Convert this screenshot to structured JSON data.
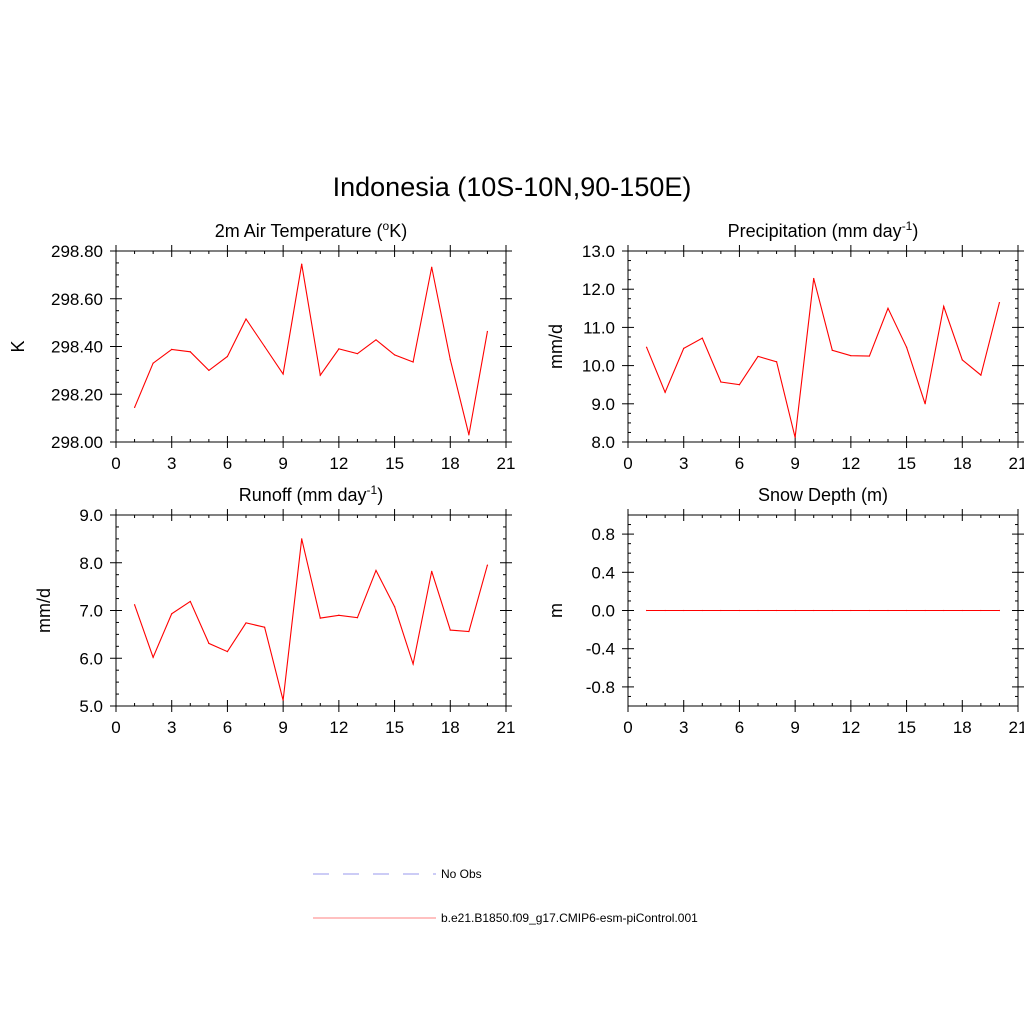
{
  "title": "Indonesia (10S-10N,90-150E)",
  "legend": [
    {
      "label": "No Obs",
      "color": "#9a9aee",
      "dash": "dashed"
    },
    {
      "label": "b.e21.B1850.f09_g17.CMIP6-esm-piControl.001",
      "color": "#ff8080",
      "dash": "solid"
    }
  ],
  "colors": {
    "series": "#ff0000",
    "axis": "#000000"
  },
  "chart_data": [
    {
      "type": "line",
      "title": "2m Air Temperature (",
      "title_sup": "o",
      "title_suffix": "K)",
      "xlabel": "",
      "ylabel": "K",
      "xlim": [
        0,
        21
      ],
      "ylim": [
        298.0,
        298.8
      ],
      "xticks": [
        0,
        3,
        6,
        9,
        12,
        15,
        18,
        21
      ],
      "yticks": [
        298.0,
        298.2,
        298.4,
        298.6,
        298.8
      ],
      "ytick_labels": [
        "298.00",
        "298.20",
        "298.40",
        "298.60",
        "298.80"
      ],
      "x": [
        1,
        2,
        3,
        4,
        5,
        6,
        7,
        8,
        9,
        10,
        11,
        12,
        13,
        14,
        15,
        16,
        17,
        18,
        19,
        20
      ],
      "values": [
        298.145,
        298.33,
        298.388,
        298.378,
        298.3,
        298.358,
        298.515,
        298.4,
        298.285,
        298.745,
        298.28,
        298.39,
        298.37,
        298.428,
        298.365,
        298.335,
        298.732,
        298.345,
        298.03,
        298.463
      ]
    },
    {
      "type": "line",
      "title": "Precipitation (mm day",
      "title_sup": "-1",
      "title_suffix": ")",
      "xlabel": "",
      "ylabel": "mm/d",
      "xlim": [
        0,
        21
      ],
      "ylim": [
        8.0,
        13.0
      ],
      "xticks": [
        0,
        3,
        6,
        9,
        12,
        15,
        18,
        21
      ],
      "yticks": [
        8,
        9,
        10,
        11,
        12,
        13
      ],
      "ytick_labels": [
        "8.0",
        "9.0",
        "10.0",
        "11.0",
        "12.0",
        "13.0"
      ],
      "x": [
        1,
        2,
        3,
        4,
        5,
        6,
        7,
        8,
        9,
        10,
        11,
        12,
        13,
        14,
        15,
        16,
        17,
        18,
        19,
        20
      ],
      "values": [
        10.48,
        9.3,
        10.45,
        10.72,
        9.57,
        9.5,
        10.24,
        10.1,
        8.12,
        12.28,
        10.4,
        10.26,
        10.25,
        11.5,
        10.48,
        9.0,
        11.55,
        10.15,
        9.75,
        11.65
      ]
    },
    {
      "type": "line",
      "title": "Runoff (mm day",
      "title_sup": "-1",
      "title_suffix": ")",
      "xlabel": "",
      "ylabel": "mm/d",
      "xlim": [
        0,
        21
      ],
      "ylim": [
        5.0,
        9.0
      ],
      "xticks": [
        0,
        3,
        6,
        9,
        12,
        15,
        18,
        21
      ],
      "yticks": [
        5,
        6,
        7,
        8,
        9
      ],
      "ytick_labels": [
        "5.0",
        "6.0",
        "7.0",
        "8.0",
        "9.0"
      ],
      "x": [
        1,
        2,
        3,
        4,
        5,
        6,
        7,
        8,
        9,
        10,
        11,
        12,
        13,
        14,
        15,
        16,
        17,
        18,
        19,
        20
      ],
      "values": [
        7.12,
        6.02,
        6.93,
        7.19,
        6.31,
        6.14,
        6.74,
        6.65,
        5.12,
        8.5,
        6.84,
        6.9,
        6.85,
        7.84,
        7.08,
        5.88,
        7.82,
        6.59,
        6.56,
        7.95
      ]
    },
    {
      "type": "line",
      "title": "Snow Depth (m)",
      "title_sup": "",
      "title_suffix": "",
      "xlabel": "",
      "ylabel": "m",
      "xlim": [
        0,
        21
      ],
      "ylim": [
        -1.0,
        1.0
      ],
      "xticks": [
        0,
        3,
        6,
        9,
        12,
        15,
        18,
        21
      ],
      "yticks": [
        -0.8,
        -0.4,
        0.0,
        0.4,
        0.8
      ],
      "ytick_labels": [
        "-0.8",
        "-0.4",
        "0.0",
        "0.4",
        "0.8"
      ],
      "x": [
        1,
        2,
        3,
        4,
        5,
        6,
        7,
        8,
        9,
        10,
        11,
        12,
        13,
        14,
        15,
        16,
        17,
        18,
        19,
        20
      ],
      "values": [
        0,
        0,
        0,
        0,
        0,
        0,
        0,
        0,
        0,
        0,
        0,
        0,
        0,
        0,
        0,
        0,
        0,
        0,
        0,
        0
      ]
    }
  ]
}
